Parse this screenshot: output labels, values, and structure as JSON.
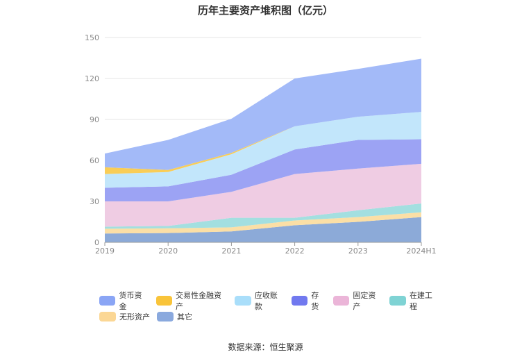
{
  "title": "历年主要资产堆积图（亿元）",
  "source": "数据来源：恒生聚源",
  "chart_data": {
    "type": "area",
    "stacked": true,
    "title": "历年主要资产堆积图（亿元）",
    "categories": [
      "2019",
      "2020",
      "2021",
      "2022",
      "2023",
      "2024H1"
    ],
    "ylim": [
      0,
      150
    ],
    "yticks": [
      0,
      30,
      60,
      90,
      120,
      150
    ],
    "grid": true,
    "legend_position": "bottom",
    "series": [
      {
        "name": "其它",
        "color": "#8caad8",
        "values": [
          6.5,
          6.8,
          8.0,
          12.5,
          15.0,
          18.5
        ]
      },
      {
        "name": "无形资产",
        "color": "#fbdfa6",
        "values": [
          3.5,
          3.5,
          3.0,
          3.5,
          3.5,
          3.5
        ]
      },
      {
        "name": "在建工程",
        "color": "#a3dfe0",
        "values": [
          1.5,
          1.7,
          7.0,
          2.0,
          5.0,
          6.5
        ]
      },
      {
        "name": "固定资产",
        "color": "#efcce3",
        "values": [
          18.5,
          18.0,
          19.0,
          32.0,
          30.5,
          29.0
        ]
      },
      {
        "name": "存货",
        "color": "#9ca3f4",
        "values": [
          10.0,
          11.0,
          12.5,
          18.0,
          21.0,
          18.0
        ]
      },
      {
        "name": "应收账款",
        "color": "#c2e6fb",
        "values": [
          10.0,
          10.5,
          15.0,
          17.0,
          17.0,
          20.0
        ]
      },
      {
        "name": "交易性金融资产",
        "color": "#f9cd57",
        "values": [
          5.0,
          1.5,
          1.0,
          0.0,
          0.0,
          0.0
        ]
      },
      {
        "name": "货币资金",
        "color": "#a3baf8",
        "values": [
          10.0,
          22.0,
          25.0,
          35.0,
          35.0,
          39.0
        ]
      }
    ],
    "legend": [
      {
        "name": "货币资金",
        "color": "#8aa5f5"
      },
      {
        "name": "交易性金融资产",
        "color": "#f9c43a"
      },
      {
        "name": "应收账款",
        "color": "#a9defa"
      },
      {
        "name": "存货",
        "color": "#7179ef"
      },
      {
        "name": "固定资产",
        "color": "#ebb5d8"
      },
      {
        "name": "在建工程",
        "color": "#7fd3d4"
      },
      {
        "name": "无形资产",
        "color": "#fbd795"
      },
      {
        "name": "其它",
        "color": "#8aa9de"
      }
    ]
  }
}
